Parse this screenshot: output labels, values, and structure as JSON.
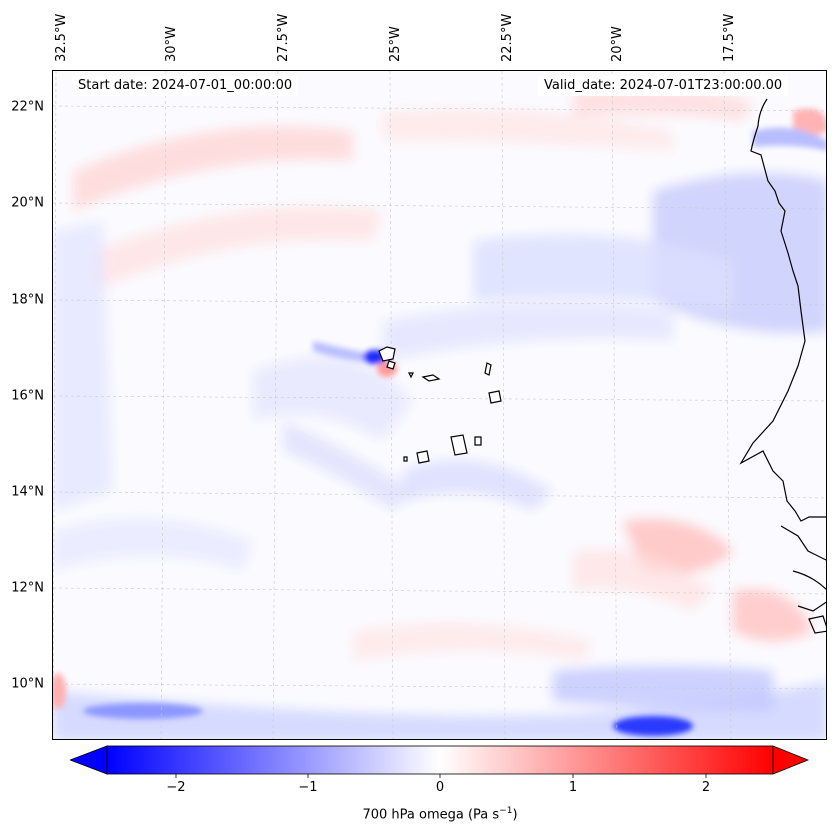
{
  "header": {
    "start_date": "Start date: 2024-07-01_00:00:00",
    "valid_date": "Valid_date: 2024-07-01T23:00:00.00"
  },
  "axes": {
    "longitude_labels": [
      "32.5°W",
      "30°W",
      "27.5°W",
      "25°W",
      "22.5°W",
      "20°W",
      "17.5°W"
    ],
    "latitude_labels": [
      "22°N",
      "20°N",
      "18°N",
      "16°N",
      "14°N",
      "12°N",
      "10°N"
    ]
  },
  "colorbar": {
    "label_prefix": "700 hPa omega (Pa s",
    "label_exp": "−1",
    "label_suffix": ")",
    "tick_labels": [
      "−2",
      "−1",
      "0",
      "1",
      "2"
    ],
    "range": [
      -2.7,
      2.7
    ],
    "extend": "both",
    "colormap": "bwr"
  },
  "colors": {
    "negative": "#0000ff",
    "positive": "#ff0000",
    "neutral": "#ffffff",
    "coastline": "#000000"
  }
}
